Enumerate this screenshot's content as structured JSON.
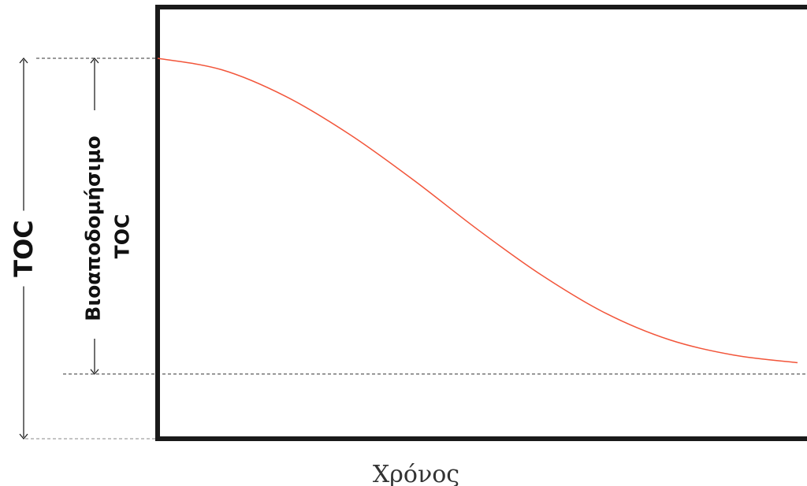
{
  "chart_data": {
    "type": "line",
    "title": "",
    "xlabel": "Χρόνος",
    "ylabel": "TOC",
    "annotations": {
      "total_label": "TOC",
      "biodegradable_label_line1": "Βιοαποδομήσιμο",
      "biodegradable_label_line2": "TOC"
    },
    "xlim": [
      0,
      1
    ],
    "ylim": [
      0,
      1
    ],
    "series": [
      {
        "color": "#f2553a",
        "x": [
          0.0,
          0.1,
          0.2,
          0.3,
          0.4,
          0.5,
          0.6,
          0.7,
          0.8,
          0.9,
          1.0
        ],
        "y": [
          1.0,
          0.97,
          0.9,
          0.8,
          0.68,
          0.55,
          0.43,
          0.33,
          0.26,
          0.22,
          0.2
        ]
      }
    ],
    "reference_lines": {
      "initial_level": 1.0,
      "residual_level": 0.17
    },
    "grid": false,
    "legend": "none"
  }
}
